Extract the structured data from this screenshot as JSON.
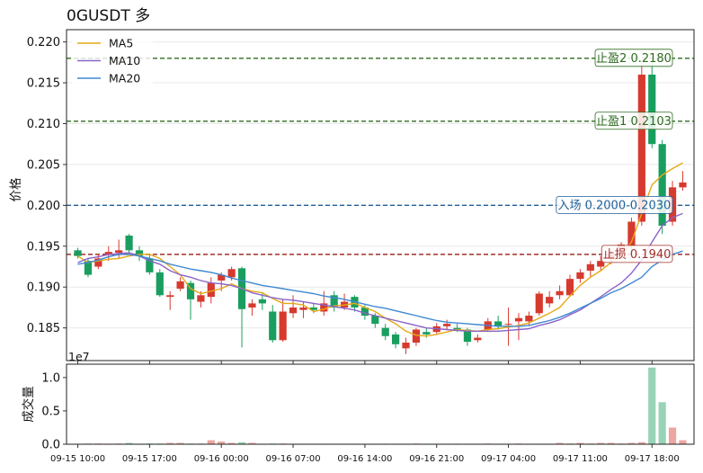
{
  "title": "0GUSDT  多",
  "chart_data": {
    "type": "candlestick",
    "symbol": "0GUSDT",
    "direction": "多",
    "ylabel": "价格",
    "ylim": [
      0.181,
      0.2215
    ],
    "yticks": [
      "0.185",
      "0.190",
      "0.195",
      "0.200",
      "0.205",
      "0.210",
      "0.215",
      "0.220"
    ],
    "ytick_values": [
      0.185,
      0.19,
      0.195,
      0.2,
      0.205,
      0.21,
      0.215,
      0.22
    ],
    "xtick_labels": [
      "09-15 10:00",
      "09-15 17:00",
      "09-16 00:00",
      "09-16 07:00",
      "09-16 14:00",
      "09-16 21:00",
      "09-17 04:00",
      "09-17 11:00",
      "09-17 18:00"
    ],
    "levels": [
      {
        "name": "止盈2",
        "label": "止盈2 0.2180",
        "value": 0.218,
        "color": "#2e6b1f"
      },
      {
        "name": "止盈1",
        "label": "止盈1 0.2103",
        "value": 0.2103,
        "color": "#2e6b1f"
      },
      {
        "name": "入场",
        "label": "入场 0.2000-0.2030",
        "value": 0.2,
        "color": "#1f5f99"
      },
      {
        "name": "止损",
        "label": "止损 0.1940",
        "value": 0.194,
        "color": "#a0302a"
      }
    ],
    "legend": [
      "MA5",
      "MA10",
      "MA20"
    ],
    "legend_position": "top-left",
    "ma_colors": {
      "MA5": "#e6a817",
      "MA10": "#8a63c9",
      "MA20": "#3f88d1"
    },
    "up_color": "#d63a2f",
    "down_color": "#1a9e5f",
    "candles": [
      [
        0.1945,
        0.1938,
        0.1948,
        0.1935
      ],
      [
        0.1932,
        0.1915,
        0.1935,
        0.1912
      ],
      [
        0.1925,
        0.1935,
        0.194,
        0.1922
      ],
      [
        0.194,
        0.1943,
        0.195,
        0.1932
      ],
      [
        0.1942,
        0.1945,
        0.1958,
        0.1935
      ],
      [
        0.1963,
        0.1945,
        0.1965,
        0.194
      ],
      [
        0.1945,
        0.1938,
        0.195,
        0.1932
      ],
      [
        0.1935,
        0.1918,
        0.194,
        0.1915
      ],
      [
        0.1918,
        0.189,
        0.1922,
        0.1888
      ],
      [
        0.1888,
        0.189,
        0.1895,
        0.1872
      ],
      [
        0.1898,
        0.1907,
        0.1912,
        0.1895
      ],
      [
        0.1905,
        0.1885,
        0.1908,
        0.186
      ],
      [
        0.1882,
        0.189,
        0.1895,
        0.1875
      ],
      [
        0.1888,
        0.1905,
        0.1912,
        0.188
      ],
      [
        0.1908,
        0.1915,
        0.1918,
        0.1895
      ],
      [
        0.1912,
        0.1922,
        0.1925,
        0.1908
      ],
      [
        0.1923,
        0.1873,
        0.1925,
        0.1826
      ],
      [
        0.1875,
        0.188,
        0.1885,
        0.1865
      ],
      [
        0.1885,
        0.188,
        0.1892,
        0.1872
      ],
      [
        0.187,
        0.1835,
        0.1878,
        0.1832
      ],
      [
        0.1835,
        0.187,
        0.1885,
        0.1833
      ],
      [
        0.1868,
        0.1875,
        0.189,
        0.1862
      ],
      [
        0.1872,
        0.1875,
        0.1882,
        0.1862
      ],
      [
        0.1875,
        0.1872,
        0.188,
        0.1868
      ],
      [
        0.187,
        0.188,
        0.1895,
        0.1865
      ],
      [
        0.189,
        0.1875,
        0.1895,
        0.187
      ],
      [
        0.1875,
        0.1882,
        0.1892,
        0.1872
      ],
      [
        0.1888,
        0.1875,
        0.189,
        0.187
      ],
      [
        0.1875,
        0.1865,
        0.1878,
        0.186
      ],
      [
        0.1865,
        0.1855,
        0.1868,
        0.185
      ],
      [
        0.185,
        0.184,
        0.1855,
        0.1835
      ],
      [
        0.1842,
        0.183,
        0.1845,
        0.1825
      ],
      [
        0.1825,
        0.1832,
        0.1838,
        0.1818
      ],
      [
        0.1832,
        0.1848,
        0.185,
        0.1828
      ],
      [
        0.1845,
        0.1842,
        0.185,
        0.1838
      ],
      [
        0.1845,
        0.1852,
        0.1856,
        0.1843
      ],
      [
        0.1852,
        0.1855,
        0.186,
        0.1848
      ],
      [
        0.185,
        0.1848,
        0.1855,
        0.1845
      ],
      [
        0.1848,
        0.1833,
        0.185,
        0.1828
      ],
      [
        0.1835,
        0.1838,
        0.1842,
        0.1832
      ],
      [
        0.1848,
        0.1858,
        0.1862,
        0.1845
      ],
      [
        0.1858,
        0.1852,
        0.1865,
        0.1848
      ],
      [
        0.1855,
        0.1855,
        0.1875,
        0.1828
      ],
      [
        0.1858,
        0.1862,
        0.1868,
        0.1835
      ],
      [
        0.1858,
        0.1865,
        0.187,
        0.1852
      ],
      [
        0.1868,
        0.1892,
        0.1895,
        0.1865
      ],
      [
        0.188,
        0.1888,
        0.1895,
        0.1875
      ],
      [
        0.189,
        0.1895,
        0.1902,
        0.1885
      ],
      [
        0.189,
        0.191,
        0.1915,
        0.1888
      ],
      [
        0.191,
        0.1918,
        0.1922,
        0.1905
      ],
      [
        0.192,
        0.1928,
        0.1932,
        0.1912
      ],
      [
        0.1925,
        0.1932,
        0.1938,
        0.192
      ],
      [
        0.1935,
        0.194,
        0.1945,
        0.1928
      ],
      [
        0.194,
        0.1952,
        0.1955,
        0.1935
      ],
      [
        0.195,
        0.198,
        0.1985,
        0.1945
      ],
      [
        0.198,
        0.216,
        0.2175,
        0.1975
      ],
      [
        0.216,
        0.2075,
        0.2178,
        0.207
      ],
      [
        0.2075,
        0.1975,
        0.208,
        0.1965
      ],
      [
        0.198,
        0.2022,
        0.203,
        0.1975
      ],
      [
        0.2022,
        0.2028,
        0.2042,
        0.2018
      ]
    ],
    "ma5": [
      0.1938,
      0.193,
      0.1932,
      0.1934,
      0.1935,
      0.1938,
      0.194,
      0.194,
      0.1935,
      0.1925,
      0.1915,
      0.1898,
      0.1892,
      0.1895,
      0.1898,
      0.1904,
      0.1898,
      0.1895,
      0.1893,
      0.1886,
      0.188,
      0.188,
      0.1878,
      0.187,
      0.1873,
      0.1877,
      0.1878,
      0.188,
      0.1875,
      0.187,
      0.1862,
      0.1855,
      0.1846,
      0.1841,
      0.184,
      0.1842,
      0.1845,
      0.1848,
      0.1847,
      0.1846,
      0.1848,
      0.1849,
      0.1851,
      0.1853,
      0.1856,
      0.1862,
      0.1868,
      0.1875,
      0.1889,
      0.1902,
      0.1912,
      0.192,
      0.193,
      0.1938,
      0.1955,
      0.199,
      0.2025,
      0.2037,
      0.2045,
      0.2052
    ],
    "ma10": [
      0.193,
      0.1935,
      0.1937,
      0.194,
      0.1941,
      0.1942,
      0.1938,
      0.1932,
      0.1928,
      0.192,
      0.1915,
      0.1912,
      0.1908,
      0.1905,
      0.1904,
      0.1902,
      0.1898,
      0.1893,
      0.189,
      0.1887,
      0.1885,
      0.1884,
      0.1882,
      0.188,
      0.1878,
      0.1876,
      0.1874,
      0.1872,
      0.1868,
      0.1865,
      0.1862,
      0.1859,
      0.1856,
      0.1853,
      0.185,
      0.1849,
      0.1848,
      0.1847,
      0.1846,
      0.1846,
      0.1846,
      0.1846,
      0.1847,
      0.1848,
      0.1849,
      0.1853,
      0.1856,
      0.186,
      0.1866,
      0.1872,
      0.188,
      0.1888,
      0.1897,
      0.1905,
      0.1917,
      0.1933,
      0.1955,
      0.1975,
      0.1985,
      0.199
    ],
    "ma20": [
      0.1928,
      0.193,
      0.1933,
      0.1937,
      0.194,
      0.194,
      0.1938,
      0.1935,
      0.1932,
      0.1928,
      0.1925,
      0.1922,
      0.192,
      0.1918,
      0.1915,
      0.1911,
      0.1908,
      0.1905,
      0.1902,
      0.19,
      0.1898,
      0.1896,
      0.1894,
      0.1892,
      0.1889,
      0.1887,
      0.1885,
      0.1882,
      0.1879,
      0.1876,
      0.1874,
      0.1871,
      0.1868,
      0.1865,
      0.1862,
      0.1859,
      0.1857,
      0.1856,
      0.1855,
      0.1854,
      0.1853,
      0.1852,
      0.1852,
      0.1852,
      0.1853,
      0.1856,
      0.1859,
      0.1863,
      0.1868,
      0.1874,
      0.188,
      0.1886,
      0.1893,
      0.1898,
      0.1905,
      0.1912,
      0.1925,
      0.1933,
      0.194,
      0.1944
    ],
    "volume": {
      "ylabel": "成交量",
      "offset_text": "1e7",
      "yticks": [
        "0.0",
        "0.5",
        "1.0"
      ],
      "ytick_values": [
        0,
        0.5,
        1.0
      ],
      "ylim": [
        0,
        1.2
      ],
      "values": [
        0,
        0.01,
        0.01,
        0,
        0.01,
        0.02,
        0,
        0.01,
        0.01,
        0.02,
        0.02,
        0.01,
        0.01,
        0.06,
        0.04,
        0.02,
        0.03,
        0.02,
        0,
        0.01,
        0.01,
        0,
        0,
        0,
        0,
        0,
        0,
        0,
        0,
        0,
        0,
        0,
        0,
        0.01,
        0,
        0,
        0,
        0,
        0,
        0,
        0.01,
        0,
        0,
        0.01,
        0,
        0,
        0,
        0.02,
        0.01,
        0.02,
        0.01,
        0.02,
        0.02,
        0.01,
        0.02,
        0.03,
        1.15,
        0.63,
        0.25,
        0.06
      ]
    }
  }
}
